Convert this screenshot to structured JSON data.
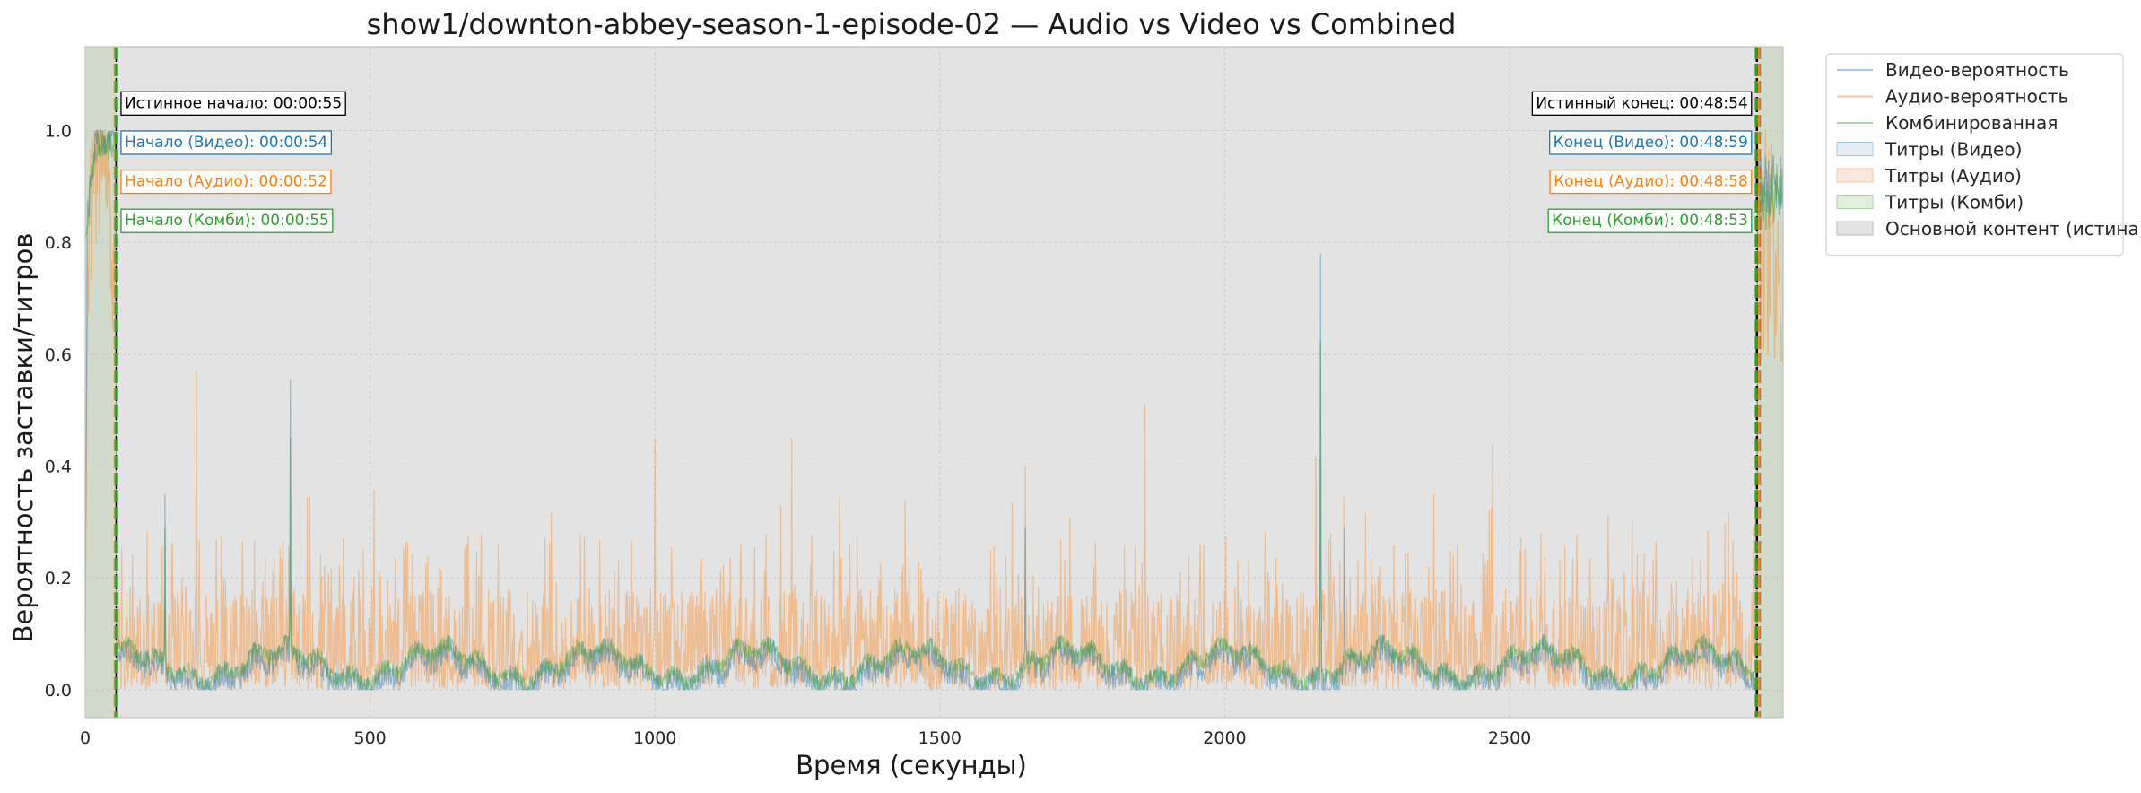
{
  "chart_data": {
    "type": "line",
    "title": "show1/downton-abbey-season-1-episode-02 — Audio vs Video vs Combined",
    "xlabel": "Время (секунды)",
    "ylabel": "Вероятность заставки/титров",
    "xlim": [
      0,
      2980
    ],
    "ylim": [
      -0.05,
      1.15
    ],
    "xticks": [
      0,
      500,
      1000,
      1500,
      2000,
      2500
    ],
    "yticks": [
      0.0,
      0.2,
      0.4,
      0.6,
      0.8,
      1.0
    ],
    "grid": true,
    "legend_position": "outside-right-top",
    "duration_seconds": 2980,
    "true_start_seconds": 55,
    "true_end_seconds": 2934,
    "detections": {
      "video": {
        "start": 54,
        "end": 2939
      },
      "audio": {
        "start": 52,
        "end": 2938
      },
      "combined": {
        "start": 55,
        "end": 2933
      }
    },
    "peaks": {
      "video": [
        [
          140,
          0.35
        ],
        [
          360,
          0.555
        ],
        [
          1650,
          0.29
        ],
        [
          2168,
          0.78
        ],
        [
          2210,
          0.29
        ]
      ],
      "audio": [
        [
          195,
          0.57
        ],
        [
          1000,
          0.45
        ],
        [
          1240,
          0.45
        ],
        [
          1650,
          0.4
        ],
        [
          1860,
          0.51
        ],
        [
          2160,
          0.42
        ],
        [
          2470,
          0.44
        ]
      ],
      "combined": [
        [
          140,
          0.29
        ],
        [
          360,
          0.45
        ],
        [
          2168,
          0.625
        ]
      ]
    },
    "colors": {
      "video": "#1f77b4",
      "audio": "#ff7f0e",
      "combined": "#2ca02c",
      "true": "#000000",
      "plot_bg": "#e3e3e3",
      "credits_bg": "#d2dacb",
      "grid": "#c8c8c8"
    },
    "legend": [
      {
        "key": "video_line",
        "label": "Видео-вероятность",
        "kind": "line",
        "color": "#a6c8e6"
      },
      {
        "key": "audio_line",
        "label": "Аудио-вероятность",
        "kind": "line",
        "color": "#f5c8a0"
      },
      {
        "key": "combined_line",
        "label": "Комбинированная",
        "kind": "line",
        "color": "#a8d4a8"
      },
      {
        "key": "video_credits",
        "label": "Титры (Видео)",
        "kind": "patch",
        "color": "#e3eef6",
        "edge": "#a6c8e6"
      },
      {
        "key": "audio_credits",
        "label": "Титры (Аудио)",
        "kind": "patch",
        "color": "#fde9dc",
        "edge": "#f5c8a0"
      },
      {
        "key": "combined_credits",
        "label": "Титры (Комби)",
        "kind": "patch",
        "color": "#e1f0dc",
        "edge": "#a8d4a8"
      },
      {
        "key": "main_content",
        "label": "Основной контент (истина)",
        "kind": "patch",
        "color": "#e3e3e3",
        "edge": "#b8b8b8"
      }
    ],
    "annotations": {
      "start": [
        {
          "text": "Истинное начало: 00:00:55",
          "color": "#000000",
          "y": 1.05
        },
        {
          "text": "Начало (Видео): 00:00:54",
          "color": "#1f77b4",
          "y": 0.98
        },
        {
          "text": "Начало (Аудио): 00:00:52",
          "color": "#ff7f0e",
          "y": 0.91
        },
        {
          "text": "Начало (Комби): 00:00:55",
          "color": "#2ca02c",
          "y": 0.84
        }
      ],
      "end": [
        {
          "text": "Истинный конец: 00:48:54",
          "color": "#000000",
          "y": 1.05
        },
        {
          "text": "Конец (Видео): 00:48:59",
          "color": "#1f77b4",
          "y": 0.98
        },
        {
          "text": "Конец (Аудио): 00:48:58",
          "color": "#ff7f0e",
          "y": 0.91
        },
        {
          "text": "Конец (Комби): 00:48:53",
          "color": "#2ca02c",
          "y": 0.84
        }
      ]
    }
  }
}
